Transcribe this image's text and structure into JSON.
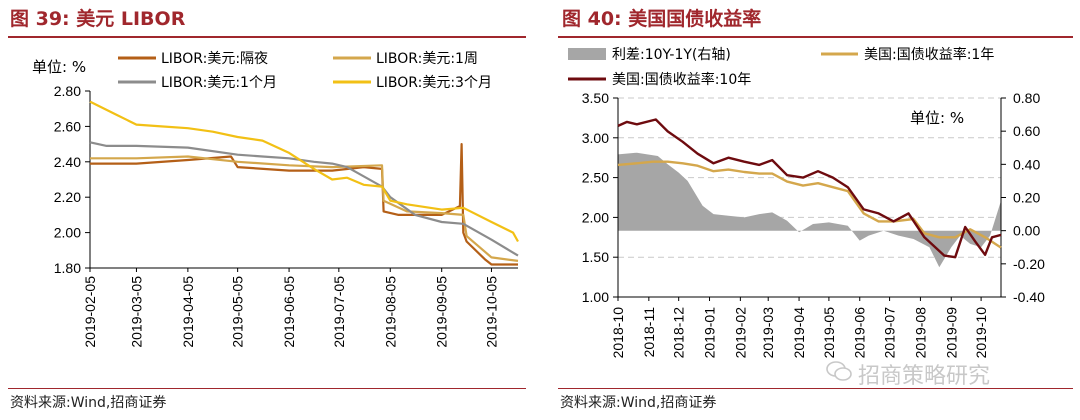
{
  "left_panel": {
    "title": "图 39:  美元 LIBOR",
    "source": "资料来源:Wind,招商证券",
    "unit": "单位: %"
  },
  "right_panel": {
    "title": "图 40:  美国国债收益率",
    "source": "资料来源:Wind,招商证券",
    "unit": "单位: %"
  },
  "watermark": "招商策略研究",
  "chart_data": [
    {
      "type": "line",
      "title": "美元 LIBOR",
      "ylim": [
        1.8,
        2.8
      ],
      "yticks": [
        "2.80",
        "2.60",
        "2.40",
        "2.20",
        "2.00",
        "1.80"
      ],
      "x_labels": [
        "2019-02-05",
        "2019-03-05",
        "2019-04-05",
        "2019-05-05",
        "2019-06-05",
        "2019-07-05",
        "2019-08-05",
        "2019-09-05",
        "2019-10-05"
      ],
      "x_range": [
        "2019-02-05",
        "2019-10-21"
      ],
      "legend": "top",
      "series": [
        {
          "name": "LIBOR:美元:隔夜",
          "color": "#b45f17",
          "points": [
            [
              "2019-02-05",
              2.39
            ],
            [
              "2019-03-05",
              2.39
            ],
            [
              "2019-04-05",
              2.41
            ],
            [
              "2019-05-01",
              2.43
            ],
            [
              "2019-05-05",
              2.37
            ],
            [
              "2019-06-05",
              2.35
            ],
            [
              "2019-07-01",
              2.35
            ],
            [
              "2019-07-20",
              2.37
            ],
            [
              "2019-07-31",
              2.36
            ],
            [
              "2019-08-01",
              2.12
            ],
            [
              "2019-08-10",
              2.1
            ],
            [
              "2019-09-05",
              2.1
            ],
            [
              "2019-09-16",
              2.15
            ],
            [
              "2019-09-17",
              2.5
            ],
            [
              "2019-09-18",
              2.0
            ],
            [
              "2019-09-20",
              1.95
            ],
            [
              "2019-10-01",
              1.85
            ],
            [
              "2019-10-05",
              1.82
            ],
            [
              "2019-10-21",
              1.82
            ]
          ]
        },
        {
          "name": "LIBOR:美元:1周",
          "color": "#d4a74c",
          "points": [
            [
              "2019-02-05",
              2.42
            ],
            [
              "2019-03-05",
              2.42
            ],
            [
              "2019-04-05",
              2.43
            ],
            [
              "2019-05-05",
              2.4
            ],
            [
              "2019-06-05",
              2.38
            ],
            [
              "2019-07-01",
              2.37
            ],
            [
              "2019-07-31",
              2.38
            ],
            [
              "2019-08-01",
              2.18
            ],
            [
              "2019-08-15",
              2.12
            ],
            [
              "2019-09-05",
              2.11
            ],
            [
              "2019-09-18",
              2.1
            ],
            [
              "2019-09-20",
              1.98
            ],
            [
              "2019-10-05",
              1.86
            ],
            [
              "2019-10-21",
              1.84
            ]
          ]
        },
        {
          "name": "LIBOR:美元:1个月",
          "color": "#8c8c8c",
          "points": [
            [
              "2019-02-05",
              2.51
            ],
            [
              "2019-02-15",
              2.49
            ],
            [
              "2019-03-05",
              2.49
            ],
            [
              "2019-04-05",
              2.48
            ],
            [
              "2019-05-05",
              2.44
            ],
            [
              "2019-05-20",
              2.43
            ],
            [
              "2019-06-05",
              2.42
            ],
            [
              "2019-06-20",
              2.4
            ],
            [
              "2019-07-01",
              2.39
            ],
            [
              "2019-07-10",
              2.37
            ],
            [
              "2019-07-31",
              2.26
            ],
            [
              "2019-08-05",
              2.2
            ],
            [
              "2019-08-20",
              2.1
            ],
            [
              "2019-09-05",
              2.06
            ],
            [
              "2019-09-18",
              2.05
            ],
            [
              "2019-10-05",
              1.96
            ],
            [
              "2019-10-21",
              1.87
            ]
          ]
        },
        {
          "name": "LIBOR:美元:3个月",
          "color": "#f2c015",
          "points": [
            [
              "2019-02-05",
              2.74
            ],
            [
              "2019-02-20",
              2.67
            ],
            [
              "2019-03-05",
              2.61
            ],
            [
              "2019-03-20",
              2.6
            ],
            [
              "2019-04-05",
              2.59
            ],
            [
              "2019-04-20",
              2.57
            ],
            [
              "2019-05-05",
              2.54
            ],
            [
              "2019-05-20",
              2.52
            ],
            [
              "2019-06-05",
              2.45
            ],
            [
              "2019-06-20",
              2.36
            ],
            [
              "2019-07-01",
              2.3
            ],
            [
              "2019-07-10",
              2.31
            ],
            [
              "2019-07-20",
              2.27
            ],
            [
              "2019-07-31",
              2.26
            ],
            [
              "2019-08-05",
              2.18
            ],
            [
              "2019-08-15",
              2.16
            ],
            [
              "2019-09-05",
              2.13
            ],
            [
              "2019-09-18",
              2.14
            ],
            [
              "2019-10-05",
              2.06
            ],
            [
              "2019-10-18",
              2.0
            ],
            [
              "2019-10-21",
              1.95
            ]
          ]
        }
      ]
    },
    {
      "type": "line",
      "title": "美国国债收益率",
      "ylim": [
        1.0,
        3.5
      ],
      "yticks": [
        "3.50",
        "3.00",
        "2.50",
        "2.00",
        "1.50",
        "1.00"
      ],
      "y2lim": [
        -0.4,
        0.8
      ],
      "y2ticks": [
        "0.80",
        "0.60",
        "0.40",
        "0.20",
        "0.00",
        "-0.20",
        "-0.40"
      ],
      "x_labels": [
        "2018-10",
        "2018-11",
        "2018-12",
        "2019-01",
        "2019-02",
        "2019-03",
        "2019-04",
        "2019-05",
        "2019-06",
        "2019-07",
        "2019-08",
        "2019-09",
        "2019-10"
      ],
      "x_range": [
        "2018-10-01",
        "2019-10-21"
      ],
      "legend": "top",
      "series": [
        {
          "name": "利差:10Y-1Y(右轴)",
          "axis": "right",
          "kind": "area",
          "color": "#a6a6a6",
          "points": [
            [
              "2018-10-01",
              0.46
            ],
            [
              "2018-10-20",
              0.47
            ],
            [
              "2018-11-10",
              0.45
            ],
            [
              "2018-11-20",
              0.4
            ],
            [
              "2018-12-01",
              0.35
            ],
            [
              "2018-12-10",
              0.3
            ],
            [
              "2018-12-25",
              0.15
            ],
            [
              "2019-01-05",
              0.1
            ],
            [
              "2019-01-20",
              0.09
            ],
            [
              "2019-02-05",
              0.08
            ],
            [
              "2019-02-20",
              0.1
            ],
            [
              "2019-03-05",
              0.11
            ],
            [
              "2019-03-20",
              0.06
            ],
            [
              "2019-04-01",
              -0.01
            ],
            [
              "2019-04-15",
              0.04
            ],
            [
              "2019-05-01",
              0.05
            ],
            [
              "2019-05-20",
              0.03
            ],
            [
              "2019-06-01",
              -0.06
            ],
            [
              "2019-06-10",
              -0.03
            ],
            [
              "2019-06-25",
              0.0
            ],
            [
              "2019-07-10",
              -0.03
            ],
            [
              "2019-07-25",
              -0.05
            ],
            [
              "2019-08-10",
              -0.1
            ],
            [
              "2019-08-20",
              -0.22
            ],
            [
              "2019-09-01",
              -0.1
            ],
            [
              "2019-09-10",
              -0.03
            ],
            [
              "2019-09-20",
              -0.08
            ],
            [
              "2019-10-01",
              -0.1
            ],
            [
              "2019-10-10",
              -0.03
            ],
            [
              "2019-10-21",
              0.18
            ]
          ]
        },
        {
          "name": "美国:国债收益率:1年",
          "axis": "left",
          "color": "#d4a74c",
          "points": [
            [
              "2018-10-01",
              2.66
            ],
            [
              "2018-10-20",
              2.68
            ],
            [
              "2018-11-05",
              2.7
            ],
            [
              "2018-11-20",
              2.7
            ],
            [
              "2018-12-05",
              2.68
            ],
            [
              "2018-12-20",
              2.65
            ],
            [
              "2019-01-05",
              2.58
            ],
            [
              "2019-01-20",
              2.6
            ],
            [
              "2019-02-05",
              2.57
            ],
            [
              "2019-02-20",
              2.55
            ],
            [
              "2019-03-05",
              2.55
            ],
            [
              "2019-03-20",
              2.45
            ],
            [
              "2019-04-05",
              2.4
            ],
            [
              "2019-04-20",
              2.43
            ],
            [
              "2019-05-05",
              2.38
            ],
            [
              "2019-05-20",
              2.33
            ],
            [
              "2019-06-05",
              2.05
            ],
            [
              "2019-06-20",
              1.95
            ],
            [
              "2019-07-05",
              1.95
            ],
            [
              "2019-07-25",
              1.98
            ],
            [
              "2019-08-05",
              1.8
            ],
            [
              "2019-08-20",
              1.75
            ],
            [
              "2019-09-05",
              1.75
            ],
            [
              "2019-09-20",
              1.85
            ],
            [
              "2019-10-05",
              1.75
            ],
            [
              "2019-10-21",
              1.62
            ]
          ]
        },
        {
          "name": "美国:国债收益率:10年",
          "axis": "left",
          "color": "#6e0b0f",
          "points": [
            [
              "2018-10-01",
              3.15
            ],
            [
              "2018-10-10",
              3.2
            ],
            [
              "2018-10-20",
              3.17
            ],
            [
              "2018-11-08",
              3.23
            ],
            [
              "2018-11-20",
              3.08
            ],
            [
              "2018-12-05",
              2.95
            ],
            [
              "2018-12-20",
              2.8
            ],
            [
              "2019-01-05",
              2.68
            ],
            [
              "2019-01-20",
              2.75
            ],
            [
              "2019-02-05",
              2.7
            ],
            [
              "2019-02-20",
              2.66
            ],
            [
              "2019-03-05",
              2.72
            ],
            [
              "2019-03-20",
              2.53
            ],
            [
              "2019-04-05",
              2.5
            ],
            [
              "2019-04-20",
              2.58
            ],
            [
              "2019-05-05",
              2.5
            ],
            [
              "2019-05-20",
              2.38
            ],
            [
              "2019-06-05",
              2.1
            ],
            [
              "2019-06-20",
              2.05
            ],
            [
              "2019-07-05",
              1.95
            ],
            [
              "2019-07-20",
              2.05
            ],
            [
              "2019-08-05",
              1.75
            ],
            [
              "2019-08-25",
              1.52
            ],
            [
              "2019-09-05",
              1.5
            ],
            [
              "2019-09-15",
              1.88
            ],
            [
              "2019-09-25",
              1.7
            ],
            [
              "2019-10-05",
              1.53
            ],
            [
              "2019-10-12",
              1.75
            ],
            [
              "2019-10-21",
              1.78
            ]
          ]
        }
      ]
    }
  ]
}
